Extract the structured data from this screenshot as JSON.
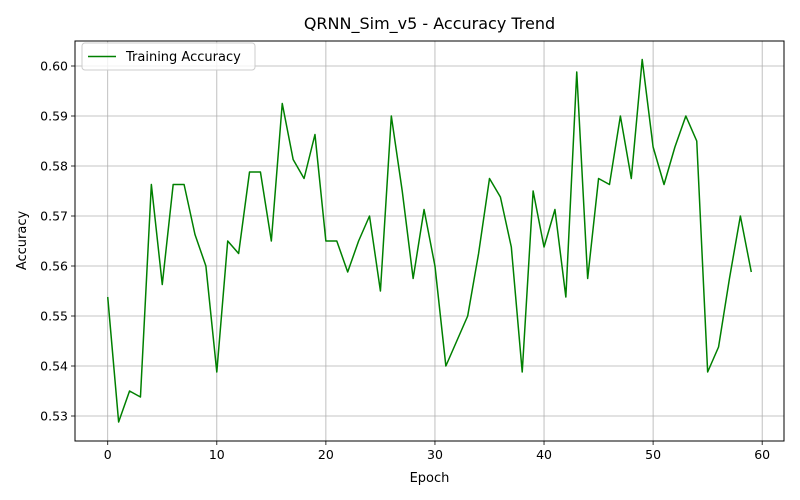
{
  "chart_data": {
    "type": "line",
    "title": "QRNN_Sim_v5 - Accuracy Trend",
    "xlabel": "Epoch",
    "ylabel": "Accuracy",
    "xlim": [
      -3,
      62
    ],
    "ylim": [
      0.525,
      0.605
    ],
    "xticks": [
      0,
      10,
      20,
      30,
      40,
      50,
      60
    ],
    "yticks": [
      0.53,
      0.54,
      0.55,
      0.56,
      0.57,
      0.58,
      0.59,
      0.6
    ],
    "ytick_labels": [
      "0.53",
      "0.54",
      "0.55",
      "0.56",
      "0.57",
      "0.58",
      "0.59",
      "0.60"
    ],
    "grid": true,
    "legend_position": "top-left",
    "series": [
      {
        "name": "Training Accuracy",
        "color": "#008000",
        "x": [
          0,
          1,
          2,
          3,
          4,
          5,
          6,
          7,
          8,
          9,
          10,
          11,
          12,
          13,
          14,
          15,
          16,
          17,
          18,
          19,
          20,
          21,
          22,
          23,
          24,
          25,
          26,
          27,
          28,
          29,
          30,
          31,
          32,
          33,
          34,
          35,
          36,
          37,
          38,
          39,
          40,
          41,
          42,
          43,
          44,
          45,
          46,
          47,
          48,
          49,
          50,
          51,
          52,
          53,
          54,
          55,
          56,
          57,
          58,
          59
        ],
        "values": [
          0.5538,
          0.5288,
          0.535,
          0.5338,
          0.5763,
          0.5563,
          0.5763,
          0.5763,
          0.5663,
          0.56,
          0.5388,
          0.565,
          0.5625,
          0.5788,
          0.5788,
          0.565,
          0.5925,
          0.5813,
          0.5775,
          0.5863,
          0.565,
          0.565,
          0.5588,
          0.565,
          0.57,
          0.555,
          0.59,
          0.575,
          0.5575,
          0.5713,
          0.56,
          0.54,
          0.545,
          0.55,
          0.5625,
          0.5775,
          0.5738,
          0.5638,
          0.5388,
          0.575,
          0.5638,
          0.5713,
          0.5538,
          0.5988,
          0.5575,
          0.5775,
          0.5763,
          0.59,
          0.5775,
          0.6013,
          0.5838,
          0.5763,
          0.5838,
          0.59,
          0.585,
          0.5388,
          0.5438,
          0.5575,
          0.57,
          0.5588
        ]
      }
    ]
  }
}
